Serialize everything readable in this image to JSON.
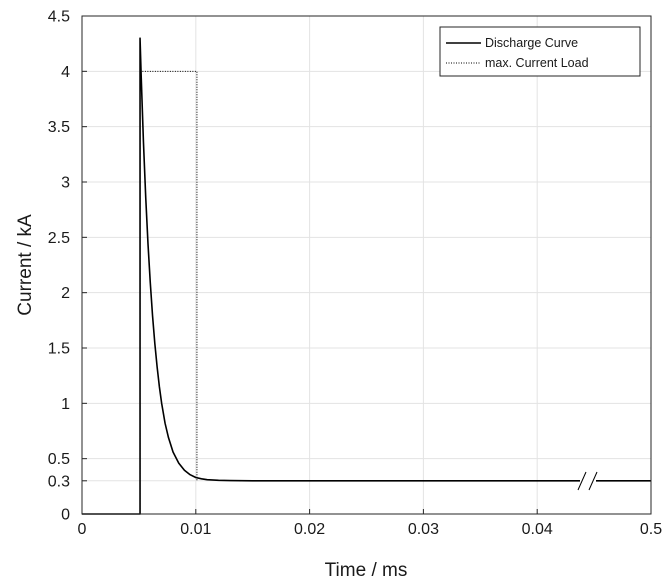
{
  "chart_data": {
    "type": "line",
    "title": "",
    "xlabel": "Time / ms",
    "ylabel": "Current / kA",
    "x_ticks": [
      "0",
      "0.01",
      "0.02",
      "0.03",
      "0.04",
      "0.5"
    ],
    "y_ticks": [
      "0",
      "0.3",
      "0.5",
      "1",
      "1.5",
      "2",
      "2.5",
      "3",
      "3.5",
      "4",
      "4.5"
    ],
    "y_tick_values": [
      0,
      0.3,
      0.5,
      1,
      1.5,
      2,
      2.5,
      3,
      3.5,
      4,
      4.5
    ],
    "xlim": [
      0,
      0.05
    ],
    "ylim": [
      0,
      4.5
    ],
    "axis_break": {
      "axis": "x",
      "at": 0.0445,
      "note": "axis break; last tick labelled 0.5"
    },
    "grid": true,
    "legend_position": "top-right",
    "series": [
      {
        "name": "Discharge Curve",
        "style": "solid",
        "color": "#000000",
        "x": [
          0,
          0.0051,
          0.0051,
          0.0052,
          0.0054,
          0.0056,
          0.0058,
          0.006,
          0.0062,
          0.0064,
          0.0066,
          0.0068,
          0.007,
          0.0073,
          0.0076,
          0.008,
          0.0085,
          0.009,
          0.0095,
          0.01,
          0.0105,
          0.011,
          0.012,
          0.013,
          0.015,
          0.02,
          0.025,
          0.03,
          0.035,
          0.04,
          0.045,
          0.05
        ],
        "y": [
          0,
          0,
          4.3,
          3.96,
          3.36,
          2.86,
          2.44,
          2.09,
          1.79,
          1.54,
          1.33,
          1.15,
          1.0,
          0.82,
          0.69,
          0.56,
          0.46,
          0.395,
          0.355,
          0.33,
          0.318,
          0.31,
          0.304,
          0.302,
          0.3,
          0.3,
          0.3,
          0.3,
          0.3,
          0.3,
          0.3,
          0.3
        ]
      },
      {
        "name": "max. Current Load",
        "style": "dotted",
        "color": "#000000",
        "x": [
          0.0051,
          0.0051,
          0.0101,
          0.0101
        ],
        "y": [
          0,
          4.0,
          4.0,
          0.3
        ]
      }
    ]
  }
}
